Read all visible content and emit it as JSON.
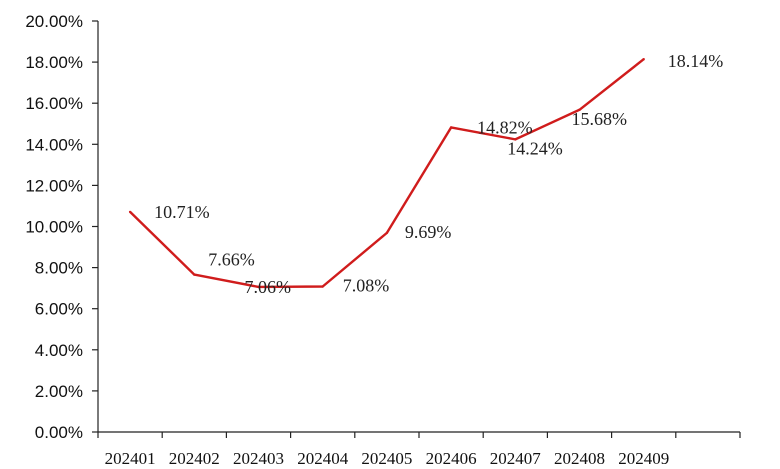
{
  "chart_data": {
    "type": "line",
    "categories": [
      "202401",
      "202402",
      "202403",
      "202404",
      "202405",
      "202406",
      "202407",
      "202408",
      "202409"
    ],
    "values": [
      10.71,
      7.66,
      7.06,
      7.08,
      9.69,
      14.82,
      14.24,
      15.68,
      18.14
    ],
    "data_labels": [
      "10.71%",
      "7.66%",
      "7.06%",
      "7.08%",
      "9.69%",
      "14.82%",
      "14.24%",
      "15.68%",
      "18.14%"
    ],
    "y_ticks": [
      "0.00%",
      "2.00%",
      "4.00%",
      "6.00%",
      "8.00%",
      "10.00%",
      "12.00%",
      "14.00%",
      "16.00%",
      "18.00%",
      "20.00%"
    ],
    "ylim": [
      0,
      20
    ],
    "ystep": 2,
    "line_color": "#d01c1c",
    "grid": false,
    "legend": "none",
    "title": "",
    "xlabel": "",
    "ylabel": ""
  }
}
